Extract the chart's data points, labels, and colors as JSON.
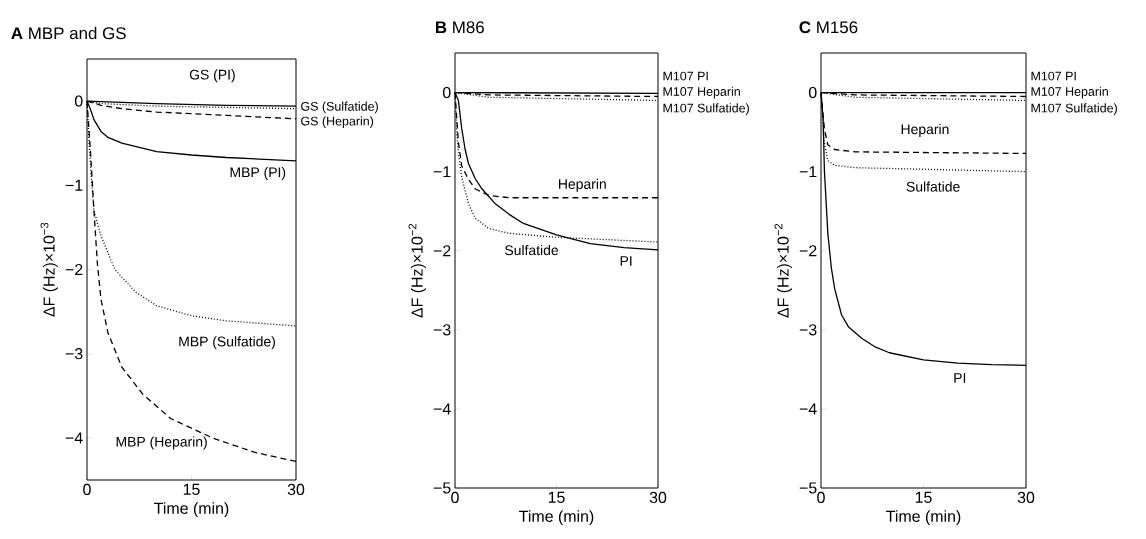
{
  "chart_data": [
    {
      "type": "line",
      "title": "**A** MBP and GS",
      "xlabel": "Time (min)",
      "ylabel": "ΔF (Hz)×10$^{−3}$",
      "xlim": [
        0,
        30
      ],
      "ylim": [
        -4.5,
        0.5
      ],
      "xticks": [
        0,
        15,
        30
      ],
      "yticks": [
        {
          "value": -4,
          "label": "−4"
        },
        {
          "value": -3,
          "label": "−3"
        },
        {
          "value": -2,
          "label": "−2"
        },
        {
          "value": -1,
          "label": "−1"
        },
        0
      ],
      "grid": false,
      "series": [
        {
          "color": "#000000",
          "line_style": "solid",
          "x": [
            0,
            10,
            20,
            30
          ],
          "values": [
            0,
            -0.03,
            -0.05,
            -0.06
          ]
        },
        {
          "color": "#000000",
          "line_style": "dotted",
          "x": [
            0,
            2,
            10,
            30
          ],
          "values": [
            0,
            -0.03,
            -0.06,
            -0.09
          ]
        },
        {
          "color": "#000000",
          "line_style": "dashed",
          "x": [
            0,
            2,
            5,
            10,
            20,
            30
          ],
          "values": [
            0,
            -0.05,
            -0.09,
            -0.13,
            -0.17,
            -0.21
          ]
        },
        {
          "color": "#000000",
          "line_style": "solid",
          "x": [
            0,
            0.5,
            1,
            2,
            3,
            5,
            10,
            15,
            20,
            30
          ],
          "values": [
            0,
            -0.1,
            -0.22,
            -0.36,
            -0.43,
            -0.5,
            -0.6,
            -0.64,
            -0.67,
            -0.71
          ]
        },
        {
          "color": "#000000",
          "line_style": "dotted",
          "x": [
            0,
            0.3,
            0.6,
            1,
            2,
            4,
            7,
            10,
            15,
            20,
            30
          ],
          "values": [
            0,
            -0.5,
            -0.9,
            -1.3,
            -1.6,
            -2.0,
            -2.27,
            -2.43,
            -2.55,
            -2.61,
            -2.67
          ]
        },
        {
          "color": "#000000",
          "line_style": "dashed",
          "x": [
            0,
            0.5,
            1,
            1.5,
            2,
            3,
            5,
            8,
            12,
            18,
            24,
            30
          ],
          "values": [
            0,
            -0.6,
            -1.3,
            -1.94,
            -2.35,
            -2.75,
            -3.16,
            -3.48,
            -3.77,
            -4.0,
            -4.17,
            -4.28
          ]
        }
      ],
      "annotations": [
        "GS (PI)",
        "GS (Sulfatide)",
        "GS (Heparin)",
        "MBP (PI)",
        "MBP (Sulfatide)",
        "MBP (Heparin)"
      ]
    },
    {
      "type": "line",
      "title": "**B** M86",
      "xlabel": "Time (min)",
      "ylabel": "ΔF (Hz)×10$^{−2}$",
      "xlim": [
        0,
        30
      ],
      "ylim": [
        -5,
        0.5
      ],
      "xticks": [
        0,
        15,
        30
      ],
      "yticks": [
        {
          "value": -5,
          "label": "−5"
        },
        {
          "value": -4,
          "label": "−4"
        },
        {
          "value": -3,
          "label": "−3"
        },
        {
          "value": -2,
          "label": "−2"
        },
        {
          "value": -1,
          "label": "−1"
        },
        0
      ],
      "grid": false,
      "series": [
        {
          "color": "#000000",
          "line_style": "solid",
          "x": [
            0,
            30
          ],
          "values": [
            0,
            -0.01
          ]
        },
        {
          "color": "#000000",
          "line_style": "dashed",
          "x": [
            0,
            5,
            30
          ],
          "values": [
            0,
            -0.03,
            -0.05
          ]
        },
        {
          "color": "#000000",
          "line_style": "dotted",
          "x": [
            0,
            5,
            30
          ],
          "values": [
            0,
            -0.06,
            -0.1
          ]
        },
        {
          "color": "#000000",
          "line_style": "solid",
          "x": [
            0,
            0.5,
            1,
            1.5,
            2,
            3,
            4,
            6,
            8,
            10,
            15,
            20,
            25,
            30
          ],
          "values": [
            0,
            -0.1,
            -0.46,
            -0.72,
            -0.9,
            -1.09,
            -1.22,
            -1.41,
            -1.54,
            -1.65,
            -1.8,
            -1.91,
            -1.96,
            -1.99
          ]
        },
        {
          "color": "#000000",
          "line_style": "dashed",
          "x": [
            0,
            0.5,
            1,
            2,
            3,
            5,
            8,
            30
          ],
          "values": [
            0,
            -0.63,
            -0.93,
            -1.1,
            -1.22,
            -1.3,
            -1.33,
            -1.33
          ]
        },
        {
          "color": "#000000",
          "line_style": "dotted",
          "x": [
            0,
            0.3,
            0.5,
            1,
            2,
            3,
            5,
            8,
            15,
            30
          ],
          "values": [
            0,
            -0.54,
            -0.76,
            -1.07,
            -1.41,
            -1.59,
            -1.72,
            -1.78,
            -1.83,
            -1.89
          ]
        }
      ],
      "annotations": [
        "M107 PI",
        "M107 Heparin",
        "M107 Sulfatide)",
        "Heparin",
        "Sulfatide",
        "PI"
      ]
    },
    {
      "type": "line",
      "title": "**C** M156",
      "xlabel": "Time (min)",
      "ylabel": "ΔF (Hz)×10$^{−2}$",
      "xlim": [
        0,
        30
      ],
      "ylim": [
        -5,
        0.5
      ],
      "xticks": [
        0,
        15,
        30
      ],
      "yticks": [
        {
          "value": -5,
          "label": "−5"
        },
        {
          "value": -4,
          "label": "−4"
        },
        {
          "value": -3,
          "label": "−3"
        },
        {
          "value": -2,
          "label": "−2"
        },
        {
          "value": -1,
          "label": "−1"
        },
        0
      ],
      "grid": false,
      "series": [
        {
          "color": "#000000",
          "line_style": "solid",
          "x": [
            0,
            30
          ],
          "values": [
            0,
            0
          ]
        },
        {
          "color": "#000000",
          "line_style": "dashed",
          "x": [
            0,
            5,
            30
          ],
          "values": [
            0,
            -0.03,
            -0.05
          ]
        },
        {
          "color": "#000000",
          "line_style": "dotted",
          "x": [
            0,
            5,
            30
          ],
          "values": [
            0,
            -0.06,
            -0.1
          ]
        },
        {
          "color": "#000000",
          "line_style": "dashed",
          "x": [
            0,
            0.5,
            1,
            2,
            5,
            30
          ],
          "values": [
            0,
            -0.46,
            -0.66,
            -0.72,
            -0.75,
            -0.77
          ]
        },
        {
          "color": "#000000",
          "line_style": "dotted",
          "x": [
            0,
            0.5,
            1,
            2,
            5,
            30
          ],
          "values": [
            0,
            -0.64,
            -0.86,
            -0.92,
            -0.95,
            -1.0
          ]
        },
        {
          "color": "#000000",
          "line_style": "solid",
          "x": [
            0,
            0.3,
            0.5,
            1,
            1.5,
            2,
            3,
            4,
            6,
            8,
            10,
            15,
            20,
            25,
            30
          ],
          "values": [
            0,
            -0.33,
            -0.99,
            -1.78,
            -2.21,
            -2.48,
            -2.81,
            -2.96,
            -3.11,
            -3.22,
            -3.29,
            -3.38,
            -3.42,
            -3.44,
            -3.45
          ]
        }
      ],
      "annotations": [
        "M107 PI",
        "M107 Heparin",
        "M107 Sulfatide)",
        "Heparin",
        "Sulfatide",
        "PI"
      ]
    }
  ]
}
